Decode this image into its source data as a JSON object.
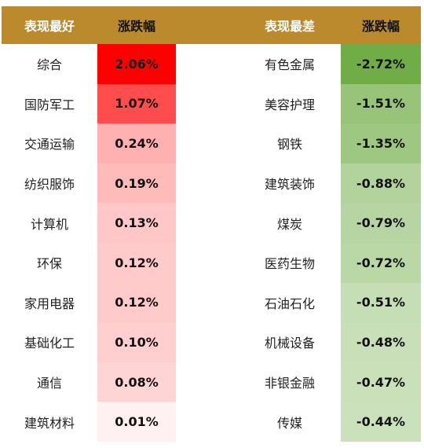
{
  "colors": {
    "header_bg": "#BA8A2C",
    "best_max": "#FF0000",
    "worst_max": "#70AD47"
  },
  "chart_data": {
    "type": "table",
    "headers": [
      "表现最好",
      "涨跌幅",
      "表现最差",
      "涨跌幅"
    ],
    "best": {
      "names": [
        "综合",
        "国防军工",
        "交通运输",
        "纺织服饰",
        "计算机",
        "环保",
        "家用电器",
        "基础化工",
        "通信",
        "建筑材料"
      ],
      "changes": [
        "2.06%",
        "1.07%",
        "0.24%",
        "0.19%",
        "0.13%",
        "0.12%",
        "0.12%",
        "0.10%",
        "0.08%",
        "0.01%"
      ],
      "values": [
        2.06,
        1.07,
        0.24,
        0.19,
        0.13,
        0.12,
        0.12,
        0.1,
        0.08,
        0.01
      ]
    },
    "worst": {
      "names": [
        "有色金属",
        "美容护理",
        "钢铁",
        "建筑装饰",
        "煤炭",
        "医药生物",
        "石油石化",
        "机械设备",
        "非银金融",
        "传媒"
      ],
      "changes": [
        "-2.72%",
        "-1.51%",
        "-1.35%",
        "-0.88%",
        "-0.79%",
        "-0.72%",
        "-0.51%",
        "-0.48%",
        "-0.47%",
        "-0.44%"
      ],
      "values": [
        -2.72,
        -1.51,
        -1.35,
        -0.88,
        -0.79,
        -0.72,
        -0.51,
        -0.48,
        -0.47,
        -0.44
      ]
    }
  }
}
